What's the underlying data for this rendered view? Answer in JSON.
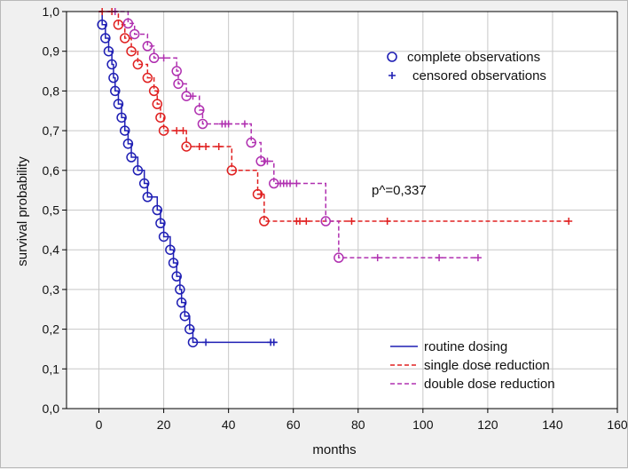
{
  "chart_data": {
    "type": "line",
    "subtype": "kaplan-meier",
    "title": "",
    "xlabel": "months",
    "ylabel": "survival probability",
    "xlim": [
      -10,
      160
    ],
    "ylim": [
      0,
      1
    ],
    "xticks": [
      0,
      20,
      40,
      60,
      80,
      100,
      120,
      140,
      160
    ],
    "yticks": [
      0,
      0.1,
      0.2,
      0.3,
      0.4,
      0.5,
      0.6,
      0.7,
      0.8,
      0.9,
      1.0
    ],
    "xtick_labels": [
      "0",
      "20",
      "40",
      "60",
      "80",
      "100",
      "120",
      "140",
      "160"
    ],
    "ytick_labels": [
      "0,0",
      "0,1",
      "0,2",
      "0,3",
      "0,4",
      "0,5",
      "0,6",
      "0,7",
      "0,8",
      "0,9",
      "1,0"
    ],
    "grid": true,
    "marker_legend": {
      "position": "top-right",
      "entries": [
        {
          "symbol": "circle",
          "label": "complete observations"
        },
        {
          "symbol": "plus",
          "label": "censored observations"
        }
      ]
    },
    "annotation": {
      "text": "p^=0,337",
      "x": 97,
      "y": 0.585
    },
    "series": [
      {
        "name": "routine dosing",
        "color": "#1f1fb4",
        "dash": "solid",
        "steps": [
          [
            0,
            1.0
          ],
          [
            1,
            0.967
          ],
          [
            2,
            0.933
          ],
          [
            3,
            0.9
          ],
          [
            4,
            0.867
          ],
          [
            4.5,
            0.833
          ],
          [
            5,
            0.8
          ],
          [
            6,
            0.767
          ],
          [
            7,
            0.733
          ],
          [
            8,
            0.7
          ],
          [
            9,
            0.667
          ],
          [
            10,
            0.633
          ],
          [
            12,
            0.6
          ],
          [
            14,
            0.567
          ],
          [
            15,
            0.533
          ],
          [
            18,
            0.5
          ],
          [
            19,
            0.467
          ],
          [
            20,
            0.433
          ],
          [
            22,
            0.4
          ],
          [
            23,
            0.367
          ],
          [
            24,
            0.333
          ],
          [
            25,
            0.3
          ],
          [
            25.5,
            0.267
          ],
          [
            26.5,
            0.233
          ],
          [
            28,
            0.2
          ],
          [
            29,
            0.167
          ]
        ],
        "end_x": 55,
        "events": [
          1,
          2,
          3,
          4,
          4.5,
          5,
          6,
          7,
          8,
          9,
          10,
          12,
          14,
          15,
          18,
          19,
          20,
          22,
          23,
          24,
          25,
          25.5,
          26.5,
          28,
          29
        ],
        "censored": [
          33,
          53,
          54
        ]
      },
      {
        "name": "single dose reduction",
        "color": "#e02020",
        "dash": "dashed",
        "steps": [
          [
            0,
            1.0
          ],
          [
            6,
            0.967
          ],
          [
            8,
            0.933
          ],
          [
            10,
            0.9
          ],
          [
            12,
            0.867
          ],
          [
            15,
            0.833
          ],
          [
            17,
            0.8
          ],
          [
            18,
            0.767
          ],
          [
            19,
            0.733
          ],
          [
            20,
            0.7
          ],
          [
            27,
            0.66
          ],
          [
            41,
            0.6
          ],
          [
            49,
            0.54
          ],
          [
            51,
            0.472
          ]
        ],
        "end_x": 145,
        "events": [
          6,
          8,
          10,
          12,
          15,
          17,
          18,
          19,
          20,
          27,
          41,
          49,
          51
        ],
        "censored": [
          1,
          4,
          24,
          26,
          31,
          33,
          37,
          50,
          61,
          62,
          64,
          78,
          89,
          145
        ]
      },
      {
        "name": "double dose reduction",
        "color": "#b030b0",
        "dash": "dashed",
        "steps": [
          [
            0,
            1.0
          ],
          [
            9,
            0.97
          ],
          [
            11,
            0.943
          ],
          [
            15,
            0.913
          ],
          [
            17,
            0.883
          ],
          [
            24,
            0.85
          ],
          [
            24.5,
            0.818
          ],
          [
            27,
            0.787
          ],
          [
            31,
            0.752
          ],
          [
            32,
            0.717
          ],
          [
            47,
            0.67
          ],
          [
            50,
            0.623
          ],
          [
            54,
            0.567
          ],
          [
            70,
            0.472
          ],
          [
            74,
            0.38
          ]
        ],
        "end_x": 117,
        "events": [
          9,
          11,
          15,
          17,
          24,
          24.5,
          27,
          31,
          32,
          47,
          50,
          54,
          70,
          74
        ],
        "censored": [
          5,
          20,
          29,
          38,
          39,
          40,
          45,
          51,
          52,
          56,
          57,
          58,
          59,
          61,
          86,
          105,
          117
        ]
      }
    ],
    "series_legend": {
      "position": "bottom-right",
      "entries": [
        "routine dosing",
        "single dose reduction",
        "double dose reduction"
      ]
    }
  }
}
